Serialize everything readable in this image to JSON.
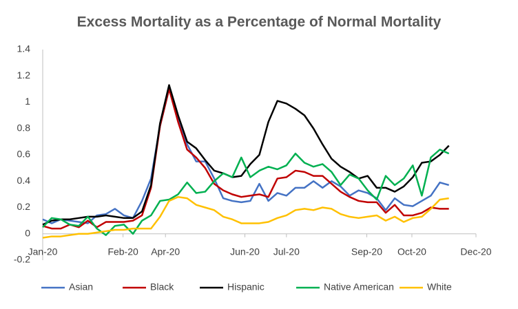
{
  "chart_data": {
    "type": "line",
    "title": "Excess Mortality as a Percentage of Normal Mortality",
    "x": [
      0,
      1,
      2,
      3,
      4,
      5,
      6,
      7,
      8,
      9,
      10,
      11,
      12,
      13,
      14,
      15,
      16,
      17,
      18,
      19,
      20,
      21,
      22,
      23,
      24,
      25,
      26,
      27,
      28,
      29,
      30,
      31,
      32,
      33,
      34,
      35,
      36,
      37,
      38,
      39,
      40,
      41,
      42,
      43,
      44,
      45
    ],
    "xlim": [
      0,
      48
    ],
    "xticks": [
      {
        "value": 0,
        "label": "Jan-20"
      },
      {
        "value": 8.9,
        "label": "Feb-20"
      },
      {
        "value": 13.6,
        "label": "Apr-20"
      },
      {
        "value": 22.4,
        "label": "Jun-20"
      },
      {
        "value": 27,
        "label": "Jul-20"
      },
      {
        "value": 35.9,
        "label": "Sep-20"
      },
      {
        "value": 40.9,
        "label": "Oct-20"
      },
      {
        "value": 48,
        "label": "Dec-20"
      }
    ],
    "ylim": [
      -0.2,
      1.4
    ],
    "yticks": [
      -0.2,
      0,
      0.2,
      0.4,
      0.6,
      0.8,
      1,
      1.2,
      1.4
    ],
    "grid": false,
    "legend": "bottom",
    "series": [
      {
        "name": "Asian",
        "color": "#4472c4",
        "values": [
          0.11,
          0.08,
          0.11,
          0.1,
          0.09,
          0.08,
          0.14,
          0.15,
          0.19,
          0.14,
          0.12,
          0.25,
          0.42,
          0.82,
          1.1,
          0.88,
          0.68,
          0.55,
          0.55,
          0.42,
          0.27,
          0.25,
          0.24,
          0.25,
          0.38,
          0.25,
          0.31,
          0.29,
          0.35,
          0.35,
          0.4,
          0.35,
          0.4,
          0.36,
          0.29,
          0.33,
          0.31,
          0.27,
          0.18,
          0.27,
          0.22,
          0.21,
          0.25,
          0.29,
          0.39,
          0.37
        ]
      },
      {
        "name": "Black",
        "color": "#c00000",
        "values": [
          0.06,
          0.04,
          0.04,
          0.07,
          0.05,
          0.1,
          0.05,
          0.09,
          0.09,
          0.09,
          0.1,
          0.14,
          0.35,
          0.82,
          1.1,
          0.85,
          0.64,
          0.58,
          0.5,
          0.38,
          0.33,
          0.3,
          0.28,
          0.29,
          0.3,
          0.28,
          0.42,
          0.43,
          0.48,
          0.47,
          0.44,
          0.44,
          0.38,
          0.32,
          0.28,
          0.25,
          0.24,
          0.24,
          0.16,
          0.22,
          0.14,
          0.14,
          0.16,
          0.2,
          0.19,
          0.19
        ]
      },
      {
        "name": "Hispanic",
        "color": "#000000",
        "values": [
          0.07,
          0.1,
          0.11,
          0.11,
          0.12,
          0.13,
          0.13,
          0.14,
          0.13,
          0.12,
          0.12,
          0.17,
          0.37,
          0.84,
          1.13,
          0.9,
          0.7,
          0.65,
          0.56,
          0.48,
          0.46,
          0.43,
          0.44,
          0.53,
          0.6,
          0.85,
          1.01,
          0.99,
          0.95,
          0.9,
          0.8,
          0.68,
          0.57,
          0.51,
          0.47,
          0.42,
          0.44,
          0.35,
          0.35,
          0.32,
          0.36,
          0.43,
          0.54,
          0.55,
          0.6,
          0.67
        ]
      },
      {
        "name": "Native American",
        "color": "#00b050",
        "values": [
          0.05,
          0.12,
          0.11,
          0.07,
          0.06,
          0.13,
          0.04,
          -0.01,
          0.06,
          0.07,
          0.0,
          0.1,
          0.14,
          0.25,
          0.26,
          0.3,
          0.39,
          0.31,
          0.32,
          0.4,
          0.46,
          0.43,
          0.58,
          0.43,
          0.48,
          0.51,
          0.49,
          0.52,
          0.61,
          0.54,
          0.51,
          0.53,
          0.47,
          0.37,
          0.45,
          0.42,
          0.33,
          0.26,
          0.44,
          0.37,
          0.42,
          0.52,
          0.29,
          0.58,
          0.64,
          0.61
        ]
      },
      {
        "name": "White",
        "color": "#ffc000",
        "values": [
          -0.03,
          -0.02,
          -0.02,
          -0.01,
          0,
          0,
          0.01,
          0.02,
          0.03,
          0.03,
          0.04,
          0.04,
          0.04,
          0.13,
          0.25,
          0.28,
          0.27,
          0.22,
          0.2,
          0.18,
          0.13,
          0.11,
          0.08,
          0.08,
          0.08,
          0.09,
          0.12,
          0.14,
          0.18,
          0.19,
          0.18,
          0.2,
          0.19,
          0.15,
          0.13,
          0.12,
          0.13,
          0.14,
          0.1,
          0.13,
          0.09,
          0.12,
          0.13,
          0.19,
          0.26,
          0.27
        ]
      }
    ]
  }
}
